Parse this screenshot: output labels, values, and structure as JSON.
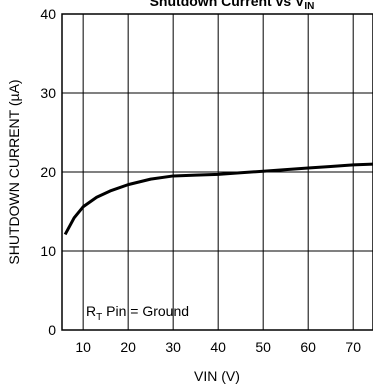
{
  "chart_data": {
    "type": "line",
    "title": {
      "main": "Shutdown Current vs V",
      "sub": "IN"
    },
    "xlabel": "VIN (V)",
    "ylabel": "SHUTDOWN CURRENT (µA)",
    "annotation": {
      "main": "R",
      "sub": "T",
      "rest": " Pin = Ground"
    },
    "x": [
      6,
      8,
      10,
      13,
      16,
      20,
      25,
      30,
      35,
      40,
      45,
      50,
      55,
      60,
      65,
      70,
      74.4
    ],
    "series": [
      {
        "name": "Shutdown Current",
        "color": "#000000",
        "values": [
          12.1,
          14.2,
          15.6,
          16.8,
          17.6,
          18.4,
          19.1,
          19.5,
          19.6,
          19.7,
          19.9,
          20.1,
          20.3,
          20.5,
          20.7,
          20.9,
          21.0
        ]
      }
    ],
    "xlim": [
      5.3,
      74.4
    ],
    "xticks": [
      10,
      20,
      30,
      40,
      50,
      60,
      70
    ],
    "ylim": [
      0,
      40
    ],
    "yticks": [
      0,
      10,
      20,
      30,
      40
    ],
    "grid": true
  }
}
